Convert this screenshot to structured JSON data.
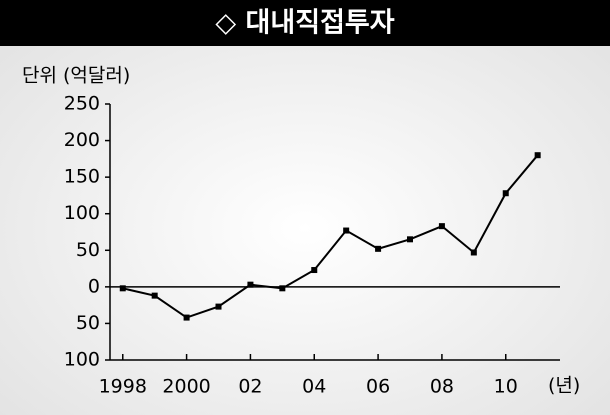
{
  "chart_data": {
    "type": "line",
    "title": "◇ 대내직접투자",
    "y_label": "단위 (억달러)",
    "x_label": "(년)",
    "x": [
      1998,
      1999,
      2000,
      2001,
      2002,
      2003,
      2004,
      2005,
      2006,
      2007,
      2008,
      2009,
      2010,
      2011
    ],
    "series": [
      {
        "name": "대내직접투자",
        "color": "#000000",
        "values": [
          -2,
          -12,
          -42,
          -27,
          3,
          -2,
          23,
          77,
          52,
          65,
          83,
          47,
          128,
          180
        ]
      }
    ],
    "xlim": [
      1997.6,
      2011.7
    ],
    "xticks": [
      1998,
      2000,
      {
        "value": 2002,
        "label": "02"
      },
      {
        "value": 2004,
        "label": "04"
      },
      {
        "value": 2006,
        "label": "06"
      },
      {
        "value": 2008,
        "label": "08"
      },
      {
        "value": 2010,
        "label": "10"
      }
    ],
    "ylim": [
      -100,
      250
    ],
    "yticks": [
      250,
      200,
      150,
      100,
      50,
      0,
      {
        "value": -50,
        "label": "50"
      },
      {
        "value": -100,
        "label": "100"
      }
    ]
  }
}
